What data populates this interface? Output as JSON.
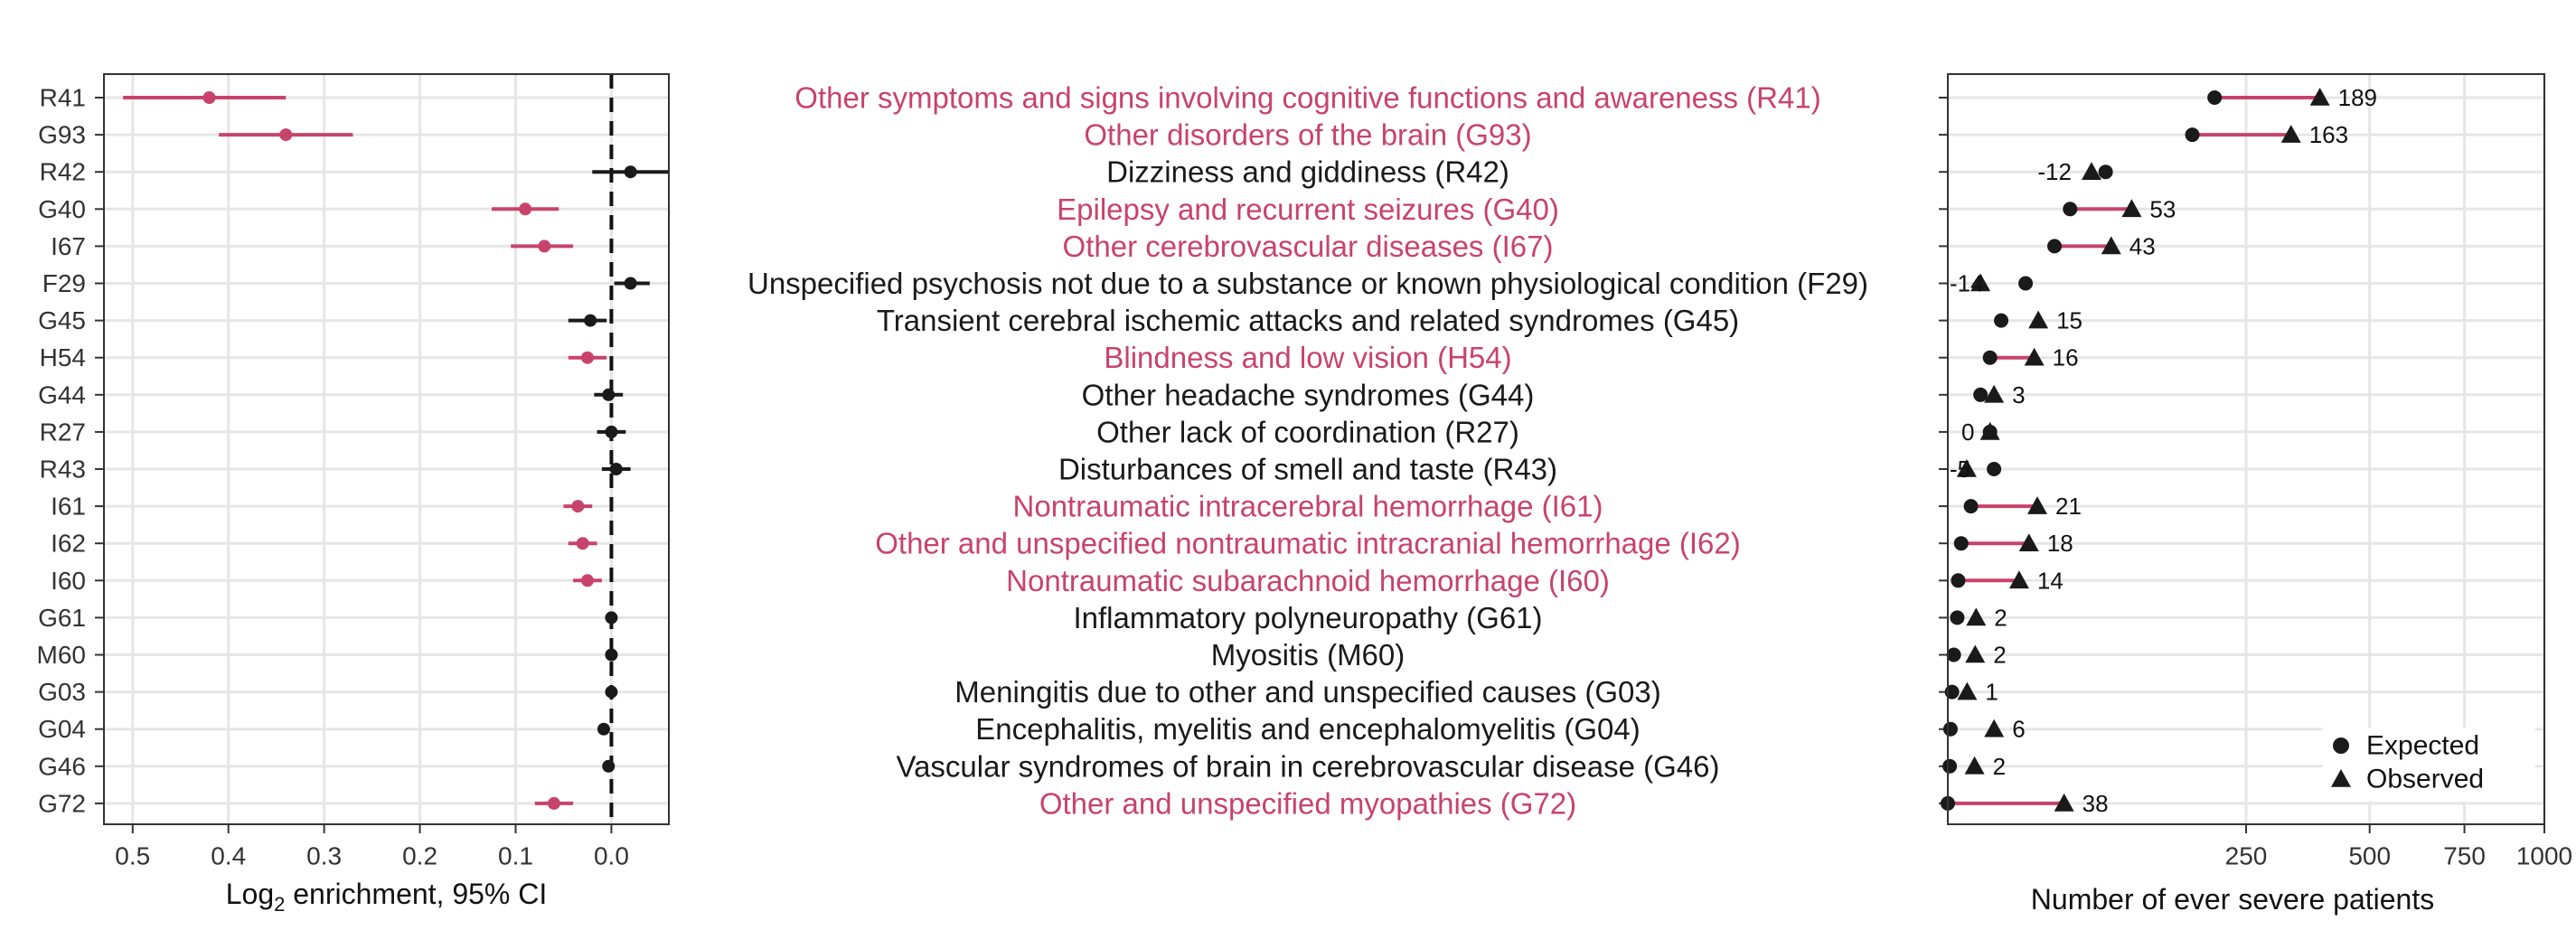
{
  "colors": {
    "significant": "#c8436b",
    "neutral": "#1a1a1a",
    "grid": "#e6e6e6",
    "frame": "#333333"
  },
  "legend": {
    "position": "bottom-right",
    "expected_label": "Expected",
    "observed_label": "Observed"
  },
  "chart_data": [
    {
      "type": "forest",
      "xlabel_main": "Log",
      "xlabel_sub": "2",
      "xlabel_rest": " enrichment, 95% CI",
      "x_reversed": true,
      "xlim": [
        -0.06,
        0.53
      ],
      "xticks": [
        0.5,
        0.4,
        0.3,
        0.2,
        0.1,
        0.0
      ],
      "xtick_labels": [
        "0.5",
        "0.4",
        "0.3",
        "0.2",
        "0.1",
        "0.0"
      ],
      "reference_line": 0.0,
      "grid": true,
      "rows": [
        {
          "code": "R41",
          "est": 0.42,
          "lo": 0.34,
          "hi": 0.51,
          "sig": true
        },
        {
          "code": "G93",
          "est": 0.34,
          "lo": 0.27,
          "hi": 0.41,
          "sig": true
        },
        {
          "code": "R42",
          "est": -0.02,
          "lo": -0.06,
          "hi": 0.02,
          "sig": false
        },
        {
          "code": "G40",
          "est": 0.09,
          "lo": 0.055,
          "hi": 0.125,
          "sig": true
        },
        {
          "code": "I67",
          "est": 0.07,
          "lo": 0.04,
          "hi": 0.105,
          "sig": true
        },
        {
          "code": "F29",
          "est": -0.02,
          "lo": -0.04,
          "hi": -0.003,
          "sig": false
        },
        {
          "code": "G45",
          "est": 0.022,
          "lo": 0.005,
          "hi": 0.045,
          "sig": false
        },
        {
          "code": "H54",
          "est": 0.025,
          "lo": 0.005,
          "hi": 0.045,
          "sig": true
        },
        {
          "code": "G44",
          "est": 0.003,
          "lo": -0.012,
          "hi": 0.018,
          "sig": false
        },
        {
          "code": "R27",
          "est": 0.0,
          "lo": -0.015,
          "hi": 0.015,
          "sig": false
        },
        {
          "code": "R43",
          "est": -0.005,
          "lo": -0.02,
          "hi": 0.01,
          "sig": false
        },
        {
          "code": "I61",
          "est": 0.035,
          "lo": 0.02,
          "hi": 0.05,
          "sig": true
        },
        {
          "code": "I62",
          "est": 0.03,
          "lo": 0.015,
          "hi": 0.045,
          "sig": true
        },
        {
          "code": "I60",
          "est": 0.025,
          "lo": 0.01,
          "hi": 0.04,
          "sig": true
        },
        {
          "code": "G61",
          "est": 0.0,
          "lo": -0.005,
          "hi": 0.005,
          "sig": false
        },
        {
          "code": "M60",
          "est": 0.0,
          "lo": -0.005,
          "hi": 0.005,
          "sig": false
        },
        {
          "code": "G03",
          "est": 0.0,
          "lo": -0.003,
          "hi": 0.003,
          "sig": false
        },
        {
          "code": "G04",
          "est": 0.008,
          "lo": 0.002,
          "hi": 0.014,
          "sig": false
        },
        {
          "code": "G46",
          "est": 0.003,
          "lo": -0.001,
          "hi": 0.007,
          "sig": false
        },
        {
          "code": "G72",
          "est": 0.06,
          "lo": 0.04,
          "hi": 0.08,
          "sig": true
        }
      ]
    },
    {
      "type": "table",
      "labels": [
        "Other symptoms and signs involving cognitive functions and awareness (R41)",
        "Other disorders of the brain (G93)",
        "Dizziness and giddiness (R42)",
        "Epilepsy and recurrent seizures (G40)",
        "Other cerebrovascular diseases (I67)",
        "Unspecified psychosis not due to a substance or known physiological condition (F29)",
        "Transient cerebral ischemic attacks and related syndromes (G45)",
        "Blindness and low vision (H54)",
        "Other headache syndromes (G44)",
        "Other lack of coordination (R27)",
        "Disturbances of smell and taste (R43)",
        "Nontraumatic intracerebral hemorrhage (I61)",
        "Other and unspecified nontraumatic intracranial hemorrhage (I62)",
        "Nontraumatic subarachnoid hemorrhage (I60)",
        "Inflammatory polyneuropathy (G61)",
        "Myositis (M60)",
        "Meningitis due to other and unspecified causes (G03)",
        "Encephalitis, myelitis and encephalomyelitis (G04)",
        "Vascular syndromes of brain in cerebrovascular disease (G46)",
        "Other and unspecified myopathies (G72)"
      ]
    },
    {
      "type": "dumbbell",
      "xlabel": "Number of ever severe patients",
      "xscale": "sqrt",
      "xlim": [
        0,
        1000
      ],
      "xticks": [
        250,
        500,
        750,
        1000
      ],
      "xtick_labels": [
        "250",
        "500",
        "750",
        "1000"
      ],
      "grid": true,
      "rows": [
        {
          "expected": 200,
          "observed": 389,
          "diff_label": "189"
        },
        {
          "expected": 168,
          "observed": 331,
          "diff_label": "163"
        },
        {
          "expected": 70,
          "observed": 58,
          "diff_label": "-12"
        },
        {
          "expected": 42,
          "observed": 95,
          "diff_label": "53"
        },
        {
          "expected": 32,
          "observed": 75,
          "diff_label": "43"
        },
        {
          "expected": 17,
          "observed": 3,
          "diff_label": "-14"
        },
        {
          "expected": 8,
          "observed": 23,
          "diff_label": "15"
        },
        {
          "expected": 5,
          "observed": 21,
          "diff_label": "16"
        },
        {
          "expected": 3,
          "observed": 6,
          "diff_label": "3"
        },
        {
          "expected": 5,
          "observed": 5,
          "diff_label": "0"
        },
        {
          "expected": 6,
          "observed": 1,
          "diff_label": "-5"
        },
        {
          "expected": 1.5,
          "observed": 22.5,
          "diff_label": "21"
        },
        {
          "expected": 0.5,
          "observed": 18.5,
          "diff_label": "18"
        },
        {
          "expected": 0.3,
          "observed": 14.3,
          "diff_label": "14"
        },
        {
          "expected": 0.25,
          "observed": 2.25,
          "diff_label": "2"
        },
        {
          "expected": 0.1,
          "observed": 2.1,
          "diff_label": "2"
        },
        {
          "expected": 0.05,
          "observed": 1.05,
          "diff_label": "1"
        },
        {
          "expected": 0.02,
          "observed": 6.02,
          "diff_label": "6"
        },
        {
          "expected": 0.01,
          "observed": 2.01,
          "diff_label": "2"
        },
        {
          "expected": 0.0,
          "observed": 38,
          "diff_label": "38"
        }
      ]
    }
  ]
}
